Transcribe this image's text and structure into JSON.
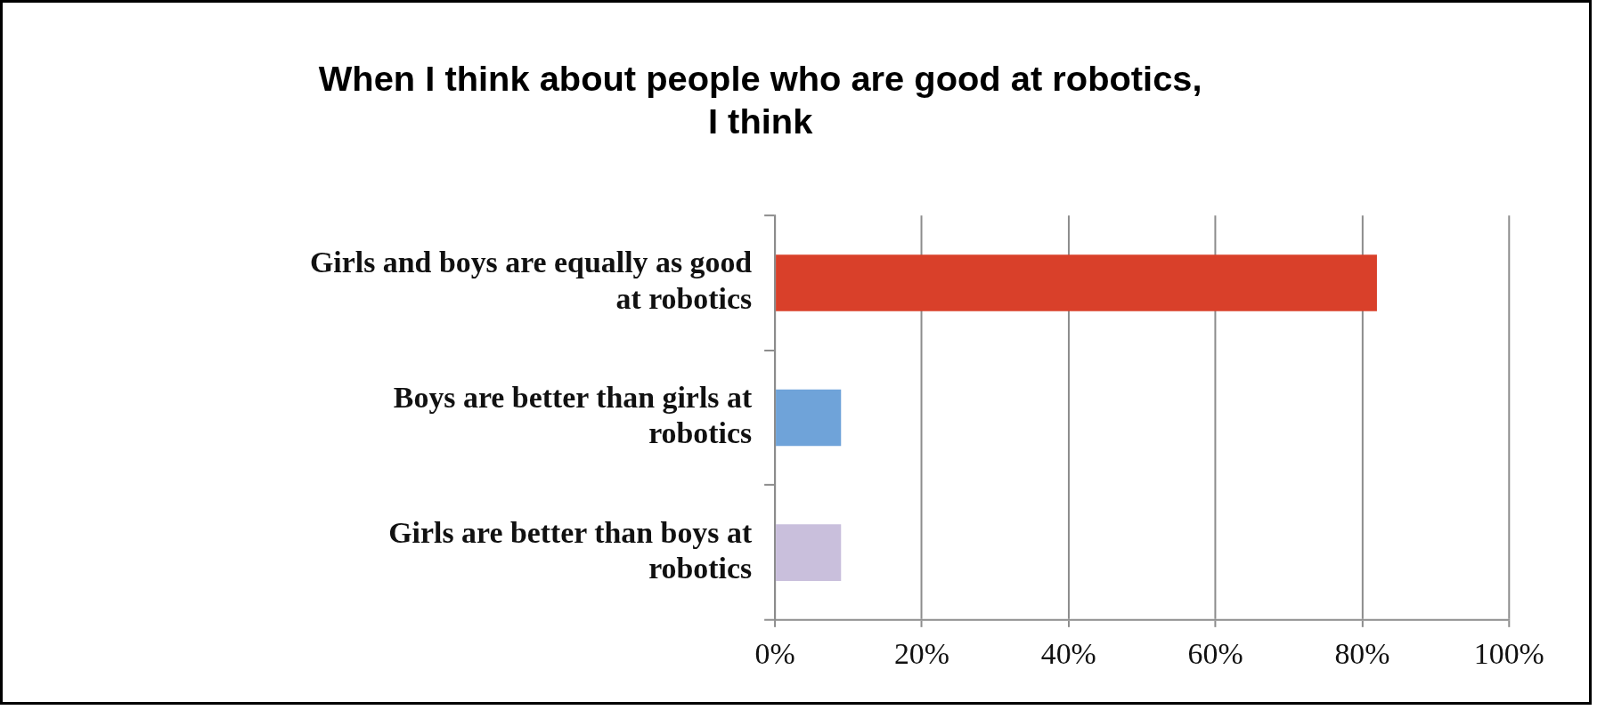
{
  "chart_data": {
    "type": "bar",
    "orientation": "horizontal",
    "title": "When I think about people who are good at robotics, I think",
    "categories": [
      "Girls and boys are equally as good at robotics",
      "Boys are better than girls at robotics",
      "Girls are better than boys at robotics"
    ],
    "values": [
      82,
      9,
      9
    ],
    "colors": [
      "#d9402a",
      "#6fa3d9",
      "#c9bfdc"
    ],
    "xlim": [
      0,
      100
    ],
    "xticks": [
      {
        "value": 0,
        "label": "0%"
      },
      {
        "value": 20,
        "label": "20%"
      },
      {
        "value": 40,
        "label": "40%"
      },
      {
        "value": 60,
        "label": "60%"
      },
      {
        "value": 80,
        "label": "80%"
      },
      {
        "value": 100,
        "label": "100%"
      }
    ],
    "grid": "x",
    "legend": false
  }
}
